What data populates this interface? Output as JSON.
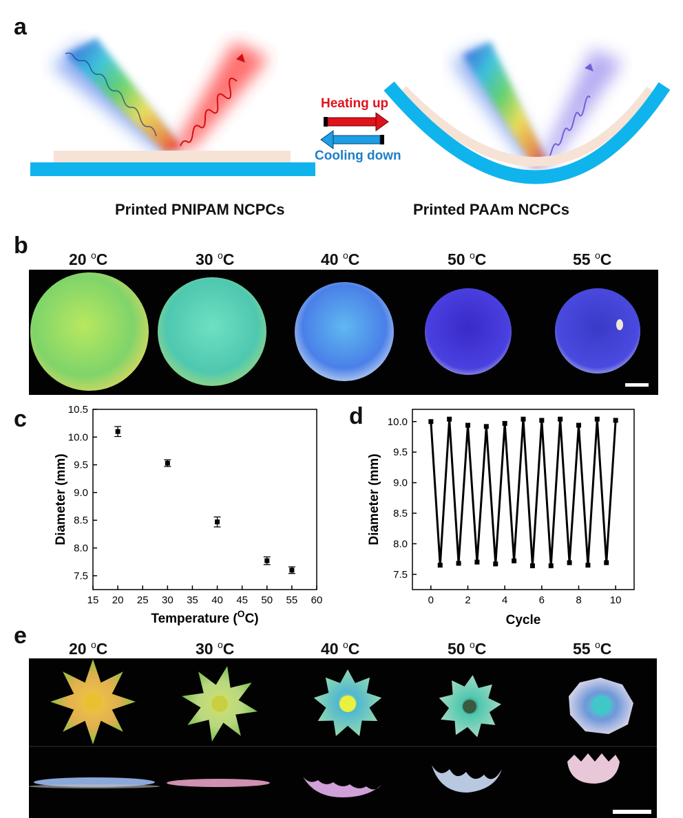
{
  "panels": {
    "a": "a",
    "b": "b",
    "c": "c",
    "d": "d",
    "e": "e"
  },
  "panel_a": {
    "heating_label": "Heating up",
    "cooling_label": "Cooling down",
    "legend_pnipam": "Printed PNIPAM NCPCs",
    "legend_paam": "Printed PAAm NCPCs",
    "colors": {
      "pnipam": "#f6e3d6",
      "paam": "#10b4ec",
      "heating": "#e0121b",
      "cooling": "#1d9fe3"
    }
  },
  "temperatures": [
    "20",
    "30",
    "40",
    "50",
    "55"
  ],
  "temp_unit_sup": "o",
  "temp_unit": "C",
  "panel_b": {
    "disc_colors": [
      "#9fdd5a",
      "#5fd8b0",
      "#5a8ff0",
      "#4a3ad8",
      "#4a4ad6"
    ],
    "disc_diameters_mm": [
      10.1,
      9.53,
      8.47,
      7.77,
      7.6
    ]
  },
  "panel_e": {
    "flower_colors": [
      "#e9c34e",
      "#c9df6e",
      "#6fd6c9",
      "#5fcab8",
      "#6fa4d8"
    ]
  },
  "chart_data": [
    {
      "type": "scatter",
      "xlabel": "Temperature (OC)",
      "xlabel_main": "Temperature (",
      "xlabel_sup": "O",
      "xlabel_end": "C)",
      "ylabel": "Diameter (mm)",
      "xlim": [
        15,
        60
      ],
      "ylim": [
        7.25,
        10.5
      ],
      "xticks": [
        15,
        20,
        25,
        30,
        35,
        40,
        45,
        50,
        55,
        60
      ],
      "yticks": [
        7.5,
        8.0,
        8.5,
        9.0,
        9.5,
        10.0,
        10.5
      ],
      "ytick_labels": [
        "7.5",
        "8.0",
        "8.5",
        "9.0",
        "9.5",
        "10.0",
        "10.5"
      ],
      "x": [
        20,
        30,
        40,
        50,
        55
      ],
      "y": [
        10.1,
        9.53,
        8.47,
        7.77,
        7.6
      ],
      "error": [
        0.09,
        0.06,
        0.09,
        0.07,
        0.06
      ]
    },
    {
      "type": "line",
      "xlabel": "Cycle",
      "ylabel": "Diameter (mm)",
      "xlim": [
        -1,
        11
      ],
      "ylim": [
        7.25,
        10.2
      ],
      "xticks": [
        0,
        2,
        4,
        6,
        8,
        10
      ],
      "yticks": [
        7.5,
        8.0,
        8.5,
        9.0,
        9.5,
        10.0
      ],
      "ytick_labels": [
        "7.5",
        "8.0",
        "8.5",
        "9.0",
        "9.5",
        "10.0"
      ],
      "x": [
        0,
        0.5,
        1,
        1.5,
        2,
        2.5,
        3,
        3.5,
        4,
        4.5,
        5,
        5.5,
        6,
        6.5,
        7,
        7.5,
        8,
        8.5,
        9,
        9.5,
        10
      ],
      "y": [
        10.0,
        7.65,
        10.04,
        7.68,
        9.94,
        7.7,
        9.92,
        7.67,
        9.97,
        7.72,
        10.04,
        7.64,
        10.02,
        7.64,
        10.04,
        7.69,
        9.94,
        7.65,
        10.04,
        7.69,
        10.02
      ]
    }
  ]
}
